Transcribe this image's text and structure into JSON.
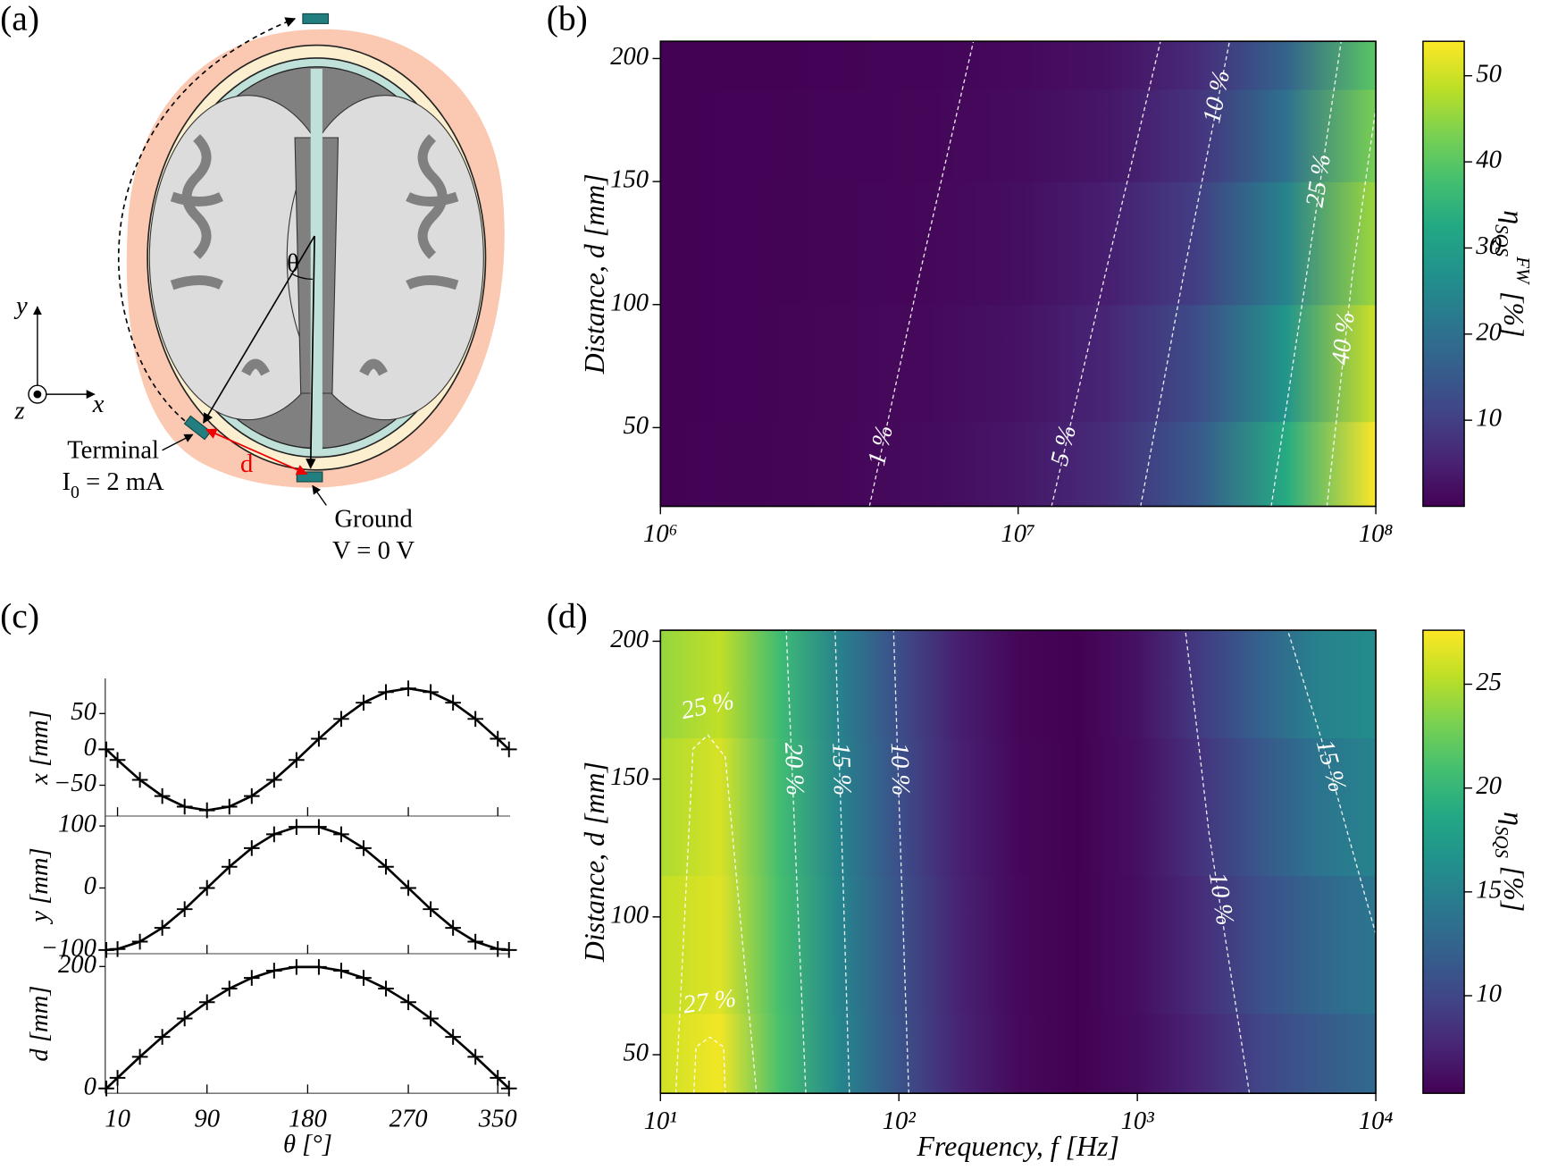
{
  "panel_labels": [
    "(a)",
    "(b)",
    "(c)",
    "(d)"
  ],
  "diagram": {
    "terminal": "Terminal",
    "current": {
      "symbol": "I",
      "subscript": "0",
      "rest": " = 2 mA"
    },
    "distance": "d",
    "ground": "Ground",
    "voltage": "V = 0 V",
    "angle": "θ",
    "axes": [
      "x",
      "y",
      "z"
    ]
  },
  "chart_data": [
    {
      "type": "heatmap",
      "ylabel": "Distance,  d [mm]",
      "xscale": "log",
      "colormap": "viridis",
      "x": [
        1000000,
        1778279,
        3162278,
        5623413,
        10000000,
        17782794,
        31622777,
        56234133,
        100000000
      ],
      "y": [
        30,
        75,
        125,
        175,
        200
      ],
      "z": [
        [
          0.2,
          0.4,
          0.8,
          1.5,
          3.2,
          7,
          15,
          33,
          54
        ],
        [
          0.2,
          0.35,
          0.7,
          1.3,
          2.6,
          5.8,
          12.5,
          28,
          50
        ],
        [
          0.15,
          0.3,
          0.55,
          1,
          2,
          4.5,
          10,
          24,
          46
        ],
        [
          0.1,
          0.25,
          0.45,
          0.8,
          1.5,
          3.3,
          8,
          20,
          43
        ],
        [
          0.1,
          0.2,
          0.35,
          0.6,
          1.1,
          2.5,
          6.5,
          17,
          40
        ]
      ],
      "xlim": [
        1000000,
        100000000
      ],
      "xticks": [
        {
          "value": 1000000,
          "label": "10⁶"
        },
        {
          "value": 10000000,
          "label": "10⁷"
        },
        {
          "value": 100000000,
          "label": "10⁸"
        }
      ],
      "ylim": [
        18,
        207
      ],
      "yticks": [
        50,
        100,
        150,
        200
      ],
      "clim": [
        0,
        54
      ],
      "cticks": [
        10,
        20,
        30,
        40,
        50
      ],
      "colorbar_label": {
        "symbol": "η",
        "subscript": "SQS",
        "superscript": "FW",
        "unit": "[%]"
      },
      "contour_color": "#ffffff",
      "contours": [
        {
          "label": "1 %",
          "x": [
            3840000,
            5300000,
            7500000
          ],
          "y": [
            18,
            112,
            207
          ]
        },
        {
          "label": "5 %",
          "x": [
            12400000,
            17500000,
            25000000
          ],
          "y": [
            18,
            112,
            207
          ]
        },
        {
          "label": "10 %",
          "x": [
            22000000,
            29000000,
            39000000
          ],
          "y": [
            18,
            112,
            207
          ]
        },
        {
          "label": "25 %",
          "x": [
            51000000,
            64000000,
            80000000
          ],
          "y": [
            18,
            112,
            207
          ]
        },
        {
          "label": "40 %",
          "x": [
            73000000,
            86000000,
            100000000
          ],
          "y": [
            18,
            112,
            180
          ]
        }
      ]
    },
    {
      "type": "line",
      "ylabel": "x [mm]",
      "color": "#000000",
      "marker": "+",
      "x": [
        0,
        10,
        30,
        50,
        70,
        90,
        110,
        130,
        150,
        170,
        190,
        210,
        230,
        250,
        270,
        290,
        310,
        330,
        350,
        360
      ],
      "values": [
        0,
        -14.8,
        -42.5,
        -65.1,
        -79.9,
        -85,
        -79.9,
        -65.1,
        -42.5,
        -14.8,
        14.8,
        42.5,
        65.1,
        79.9,
        85,
        79.9,
        65.1,
        42.5,
        14.8,
        0
      ],
      "xlim": [
        -1,
        361
      ],
      "xticks": [
        10,
        90,
        180,
        270,
        350
      ],
      "xticklabels": false,
      "ylim": [
        -93,
        99
      ],
      "yticks": [
        {
          "value": -50,
          "label": "−50"
        },
        0,
        50
      ]
    },
    {
      "type": "line",
      "ylabel": "y [mm]",
      "color": "#000000",
      "marker": "+",
      "x": [
        0,
        10,
        30,
        50,
        70,
        90,
        110,
        130,
        150,
        170,
        190,
        210,
        230,
        250,
        270,
        290,
        310,
        330,
        350,
        360
      ],
      "values": [
        -100,
        -98.5,
        -86.6,
        -64.3,
        -34.2,
        0,
        34.2,
        64.3,
        86.6,
        98.5,
        98.5,
        86.6,
        64.3,
        34.2,
        0,
        -34.2,
        -64.3,
        -86.6,
        -98.5,
        -100
      ],
      "xlim": [
        -1,
        361
      ],
      "xticks": [
        10,
        90,
        180,
        270,
        350
      ],
      "xticklabels": false,
      "ylim": [
        -106,
        116
      ],
      "yticks": [
        {
          "value": -100,
          "label": "−100"
        },
        0,
        100
      ]
    },
    {
      "type": "line",
      "ylabel": "d [mm]",
      "xlabel": "θ [°]",
      "color": "#000000",
      "marker": "+",
      "x": [
        0,
        10,
        30,
        50,
        70,
        90,
        110,
        130,
        150,
        170,
        190,
        210,
        230,
        250,
        270,
        290,
        310,
        330,
        350,
        360
      ],
      "values": [
        0,
        17.4,
        51.8,
        84.5,
        114.7,
        141.4,
        163.8,
        181.3,
        193.2,
        199.2,
        199.2,
        193.2,
        181.3,
        163.8,
        141.4,
        114.7,
        84.5,
        51.8,
        17.4,
        0
      ],
      "xlim": [
        -1,
        361
      ],
      "xticks": [
        10,
        90,
        180,
        270,
        350
      ],
      "ylim": [
        -8,
        221
      ],
      "yticks": [
        0,
        200
      ]
    },
    {
      "type": "heatmap",
      "ylabel": "Distance,  d [mm]",
      "xlabel": "Frequency,  f [Hz]",
      "xscale": "log",
      "colormap": "viridis",
      "x": [
        10,
        17.78,
        31.62,
        56.23,
        100,
        177.8,
        316.2,
        562.3,
        1000,
        1778,
        3162,
        5623,
        10000
      ],
      "y": [
        40,
        90,
        140,
        190
      ],
      "z": [
        [
          26,
          27.2,
          21,
          15.5,
          11,
          7.5,
          5.8,
          5.3,
          6,
          7.5,
          9.8,
          11.5,
          13
        ],
        [
          25.5,
          26.6,
          20.9,
          15.4,
          10.9,
          7.4,
          5.75,
          5.3,
          6.1,
          8,
          10.5,
          12.5,
          14
        ],
        [
          24.8,
          26.3,
          20.7,
          15.2,
          10.7,
          7.3,
          5.7,
          5.25,
          6.2,
          8.5,
          11.2,
          13.8,
          15.2
        ],
        [
          24,
          25.5,
          20.5,
          15,
          10.5,
          7.2,
          5.6,
          5.2,
          6.3,
          9,
          12,
          15,
          16
        ]
      ],
      "xlim": [
        10,
        10000
      ],
      "xticks": [
        {
          "value": 10,
          "label": "10¹"
        },
        {
          "value": 100,
          "label": "10²"
        },
        {
          "value": 1000,
          "label": "10³"
        },
        {
          "value": 10000,
          "label": "10⁴"
        }
      ],
      "ylim": [
        36,
        204
      ],
      "yticks": [
        50,
        100,
        150,
        200
      ],
      "clim": [
        5.3,
        27.6
      ],
      "cticks": [
        10,
        15,
        20,
        25
      ],
      "colorbar_label": {
        "symbol": "η",
        "subscript": "SQS",
        "unit": "[%]"
      },
      "contour_color": "#ffffff",
      "contours": [
        {
          "label": "25 %",
          "x": [
            11.6,
            13.7,
            15.8,
            18.7,
            25.3
          ],
          "y": [
            36,
            161,
            166,
            158,
            36
          ]
        },
        {
          "label": "27 %",
          "x": [
            13.8,
            14.1,
            16.1,
            18.4,
            18.7
          ],
          "y": [
            36,
            52.8,
            56.4,
            52.8,
            36
          ]
        },
        {
          "label": "20 %",
          "x": [
            40.7,
            37,
            33.7
          ],
          "y": [
            36,
            120,
            204
          ]
        },
        {
          "label": "15 %",
          "x": [
            62,
            58,
            54
          ],
          "y": [
            36,
            120,
            204
          ]
        },
        {
          "label": "10 %",
          "x": [
            110,
            102,
            95
          ],
          "y": [
            36,
            120,
            204
          ]
        },
        {
          "label": "10 %",
          "x": [
            2950,
            2000,
            1590
          ],
          "y": [
            36,
            130,
            204
          ]
        },
        {
          "label": "15 %",
          "x": [
            10000,
            5900,
            4270
          ],
          "y": [
            93.7,
            164.8,
            204
          ]
        }
      ]
    }
  ]
}
